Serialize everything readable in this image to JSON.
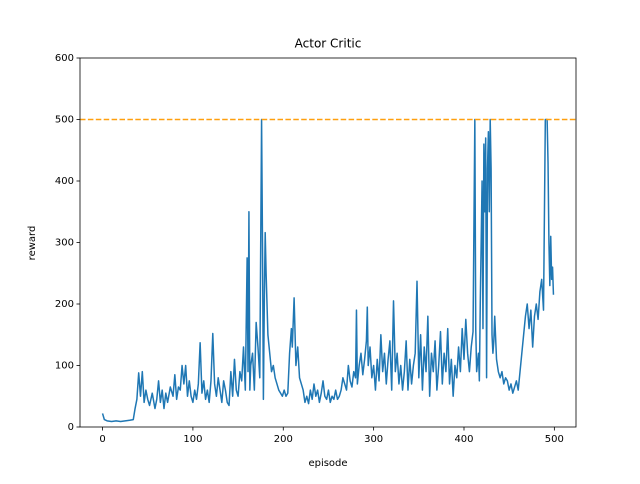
{
  "chart_data": {
    "type": "line",
    "title": "Actor Critic",
    "x_label": "episode",
    "y_label": "reward",
    "xlim": [
      -24.95,
      523.95
    ],
    "xticks": [
      0,
      100,
      200,
      300,
      400,
      500
    ],
    "ylim": [
      0,
      600
    ],
    "yticks": [
      0,
      100,
      200,
      300,
      400,
      500,
      600
    ],
    "threshold": {
      "value": 500,
      "color": "#ff9f0e"
    },
    "series": [
      {
        "color": "#1f77b4",
        "x": [
          0,
          2,
          5,
          10,
          15,
          20,
          25,
          30,
          34,
          36,
          38,
          40,
          42,
          44,
          46,
          48,
          50,
          52,
          55,
          58,
          60,
          62,
          64,
          66,
          68,
          70,
          72,
          75,
          78,
          80,
          82,
          84,
          86,
          88,
          90,
          92,
          94,
          96,
          98,
          100,
          102,
          104,
          106,
          108,
          110,
          112,
          114,
          116,
          118,
          120,
          122,
          124,
          126,
          128,
          130,
          132,
          134,
          136,
          138,
          140,
          142,
          144,
          146,
          148,
          150,
          152,
          154,
          156,
          158,
          160,
          161,
          162,
          163,
          164,
          166,
          168,
          170,
          172,
          174,
          176,
          177,
          178,
          179,
          180,
          181,
          183,
          185,
          187,
          189,
          191,
          193,
          195,
          197,
          199,
          201,
          203,
          205,
          207,
          209,
          210,
          212,
          214,
          216,
          218,
          220,
          222,
          224,
          226,
          228,
          230,
          232,
          234,
          236,
          238,
          240,
          242,
          244,
          246,
          248,
          250,
          252,
          254,
          256,
          258,
          260,
          262,
          264,
          266,
          268,
          270,
          272,
          274,
          276,
          278,
          280,
          281,
          282,
          284,
          286,
          288,
          290,
          292,
          293,
          294,
          296,
          298,
          300,
          302,
          304,
          306,
          308,
          310,
          312,
          314,
          316,
          318,
          320,
          322,
          324,
          326,
          328,
          330,
          332,
          334,
          336,
          338,
          340,
          342,
          344,
          346,
          348,
          350,
          352,
          354,
          356,
          358,
          360,
          362,
          364,
          366,
          368,
          370,
          372,
          374,
          376,
          378,
          380,
          382,
          384,
          386,
          388,
          390,
          392,
          394,
          396,
          398,
          400,
          402,
          404,
          406,
          408,
          410,
          412,
          413,
          414,
          416,
          417,
          418,
          420,
          421,
          422,
          423,
          424,
          425,
          426,
          427,
          428,
          429,
          430,
          431,
          432,
          433,
          434,
          436,
          438,
          440,
          442,
          444,
          446,
          448,
          450,
          452,
          454,
          456,
          458,
          460,
          462,
          464,
          466,
          468,
          470,
          472,
          474,
          476,
          478,
          480,
          482,
          484,
          486,
          488,
          490,
          492,
          493,
          494,
          495,
          496,
          497,
          498,
          499
        ],
        "values": [
          22,
          12,
          10,
          9,
          10,
          9,
          10,
          11,
          12,
          30,
          45,
          88,
          50,
          90,
          40,
          60,
          45,
          35,
          55,
          30,
          45,
          75,
          40,
          60,
          30,
          55,
          40,
          65,
          50,
          85,
          45,
          65,
          60,
          100,
          70,
          100,
          50,
          75,
          50,
          40,
          60,
          45,
          70,
          137,
          55,
          75,
          45,
          60,
          40,
          75,
          152,
          70,
          50,
          80,
          60,
          40,
          75,
          60,
          40,
          35,
          90,
          50,
          110,
          60,
          50,
          90,
          75,
          130,
          60,
          275,
          90,
          350,
          60,
          100,
          120,
          60,
          170,
          130,
          80,
          500,
          300,
          45,
          200,
          316,
          250,
          150,
          120,
          90,
          100,
          80,
          70,
          60,
          55,
          50,
          60,
          50,
          55,
          120,
          160,
          130,
          210,
          100,
          130,
          80,
          70,
          60,
          40,
          50,
          38,
          60,
          45,
          70,
          50,
          60,
          40,
          55,
          75,
          50,
          45,
          60,
          40,
          50,
          45,
          60,
          45,
          50,
          60,
          80,
          70,
          60,
          100,
          75,
          65,
          90,
          80,
          190,
          70,
          100,
          120,
          85,
          110,
          140,
          195,
          100,
          130,
          80,
          100,
          60,
          110,
          75,
          150,
          90,
          120,
          70,
          110,
          140,
          60,
          205,
          90,
          120,
          70,
          100,
          60,
          90,
          140,
          60,
          110,
          70,
          100,
          120,
          237,
          80,
          150,
          60,
          130,
          90,
          180,
          50,
          120,
          90,
          140,
          60,
          100,
          155,
          70,
          120,
          90,
          160,
          70,
          110,
          50,
          100,
          80,
          130,
          90,
          160,
          110,
          175,
          120,
          90,
          130,
          155,
          500,
          160,
          90,
          120,
          75,
          200,
          400,
          160,
          460,
          350,
          470,
          80,
          420,
          480,
          350,
          500,
          420,
          150,
          120,
          140,
          180,
          110,
          90,
          80,
          90,
          70,
          80,
          75,
          60,
          70,
          55,
          65,
          75,
          60,
          90,
          120,
          150,
          180,
          200,
          160,
          190,
          130,
          180,
          200,
          175,
          220,
          240,
          190,
          500,
          500,
          430,
          300,
          230,
          310,
          240,
          260,
          215
        ]
      }
    ]
  }
}
